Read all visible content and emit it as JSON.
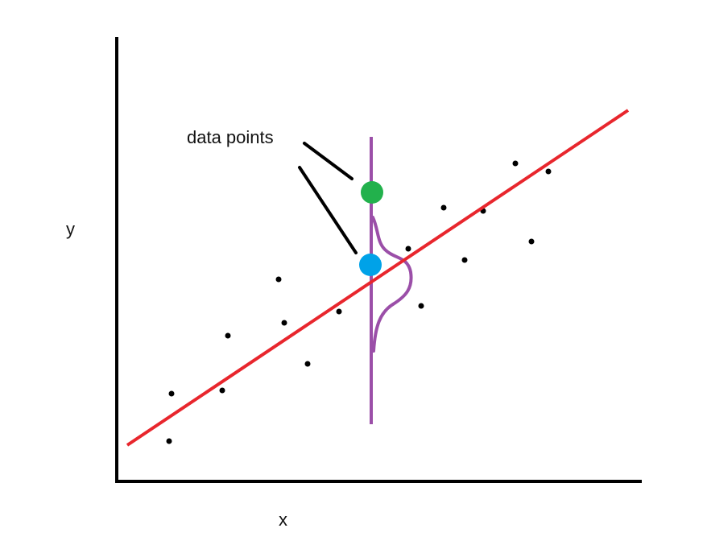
{
  "diagram": {
    "x_axis_label": "x",
    "y_axis_label": "y",
    "annotation": "data points",
    "colors": {
      "axes": "#000000",
      "regression_line": "#e8262d",
      "vertical_line": "#9b4fa8",
      "distribution_curve": "#9b4fa8",
      "observed_point": "#22b14c",
      "predicted_point": "#00a2e8",
      "scatter": "#000000"
    }
  }
}
